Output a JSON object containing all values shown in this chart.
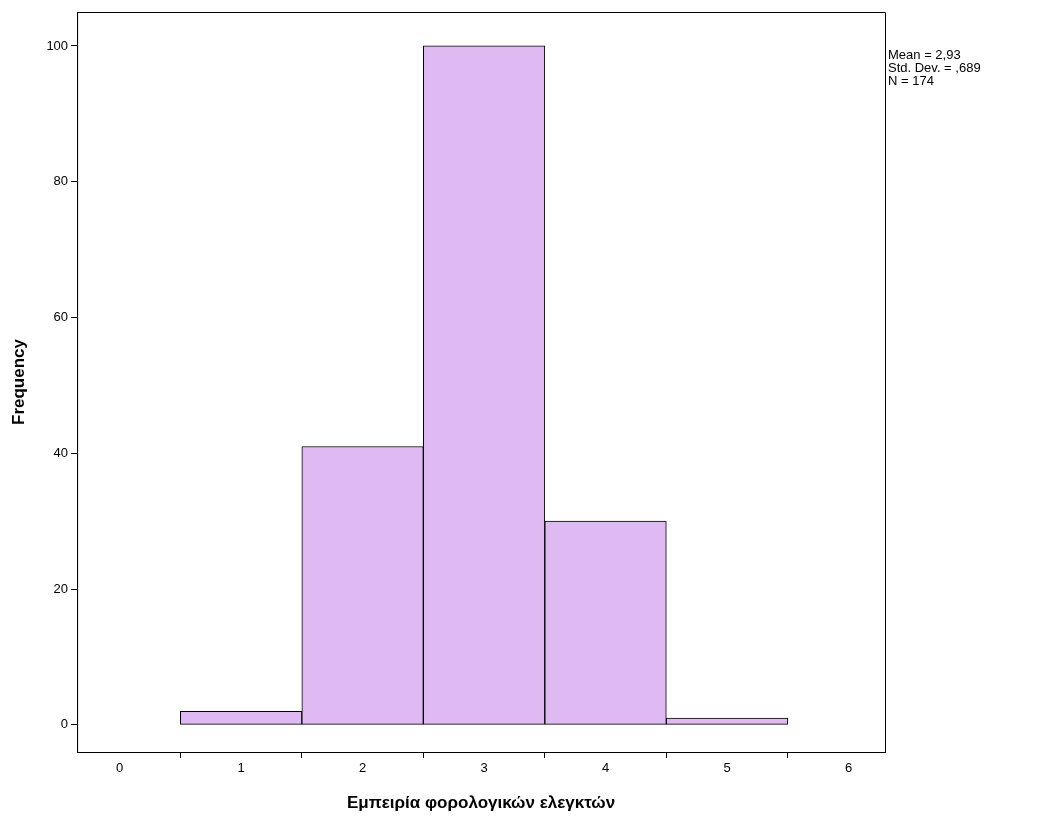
{
  "chart_data": {
    "type": "histogram",
    "xlabel": "Εμπειρία φορολογικών ελεγκτών",
    "ylabel": "Frequency",
    "bins": [
      0.5,
      1.5,
      2.5,
      3.5,
      4.5,
      5.5
    ],
    "values": [
      2,
      41,
      100,
      30,
      1
    ],
    "color": "#dfbaf2",
    "xlim": [
      -0.35,
      6.3
    ],
    "xticks": [
      0,
      1,
      2,
      3,
      4,
      5,
      6
    ],
    "ylim": [
      -4,
      105
    ],
    "yticks": [
      0,
      20,
      40,
      60,
      80,
      100
    ],
    "grid": false,
    "legend": false,
    "annotations": [
      "Mean = 2,93",
      "Std. Dev. = ,689",
      "N = 174"
    ]
  }
}
